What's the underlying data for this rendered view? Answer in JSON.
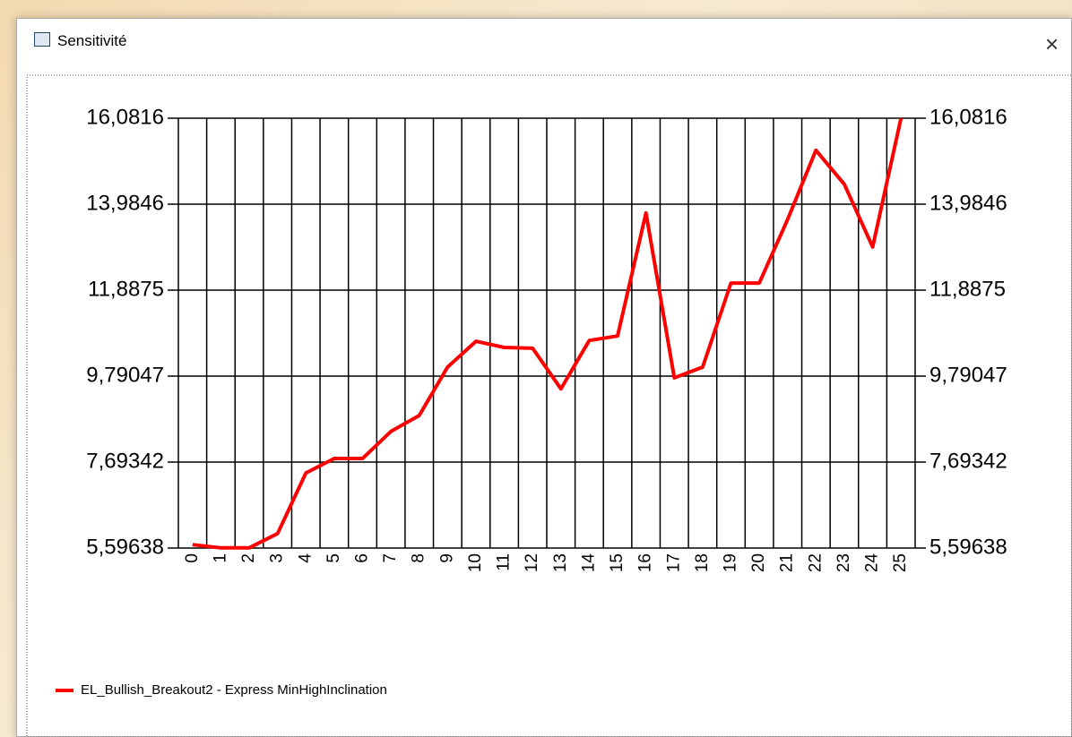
{
  "window": {
    "title": "Sensitivité"
  },
  "chart_data": {
    "type": "line",
    "categories": [
      "0",
      "1",
      "2",
      "3",
      "4",
      "5",
      "6",
      "7",
      "8",
      "9",
      "10",
      "11",
      "12",
      "13",
      "14",
      "15",
      "16",
      "17",
      "18",
      "19",
      "20",
      "21",
      "22",
      "23",
      "24",
      "25"
    ],
    "series": [
      {
        "name": "EL_Bullish_Breakout2 - Express MinHighInclination",
        "color": "#ff0000",
        "values": [
          5.68,
          5.6,
          5.6,
          5.95,
          7.43,
          7.78,
          7.78,
          8.44,
          8.83,
          10.01,
          10.64,
          10.49,
          10.47,
          9.48,
          10.66,
          10.77,
          13.77,
          9.75,
          10.01,
          12.06,
          12.06,
          13.61,
          15.3,
          14.47,
          12.94,
          16.08
        ]
      }
    ],
    "ylim": [
      5.59638,
      16.0816
    ],
    "yticks": [
      {
        "value": 5.59638,
        "label": "5,59638"
      },
      {
        "value": 7.69342,
        "label": "7,69342"
      },
      {
        "value": 9.79047,
        "label": "9,79047"
      },
      {
        "value": 11.8875,
        "label": "11,8875"
      },
      {
        "value": 13.9846,
        "label": "13,9846"
      },
      {
        "value": 16.0816,
        "label": "16,0816"
      }
    ],
    "grid": true,
    "legend": "bottom-left"
  }
}
